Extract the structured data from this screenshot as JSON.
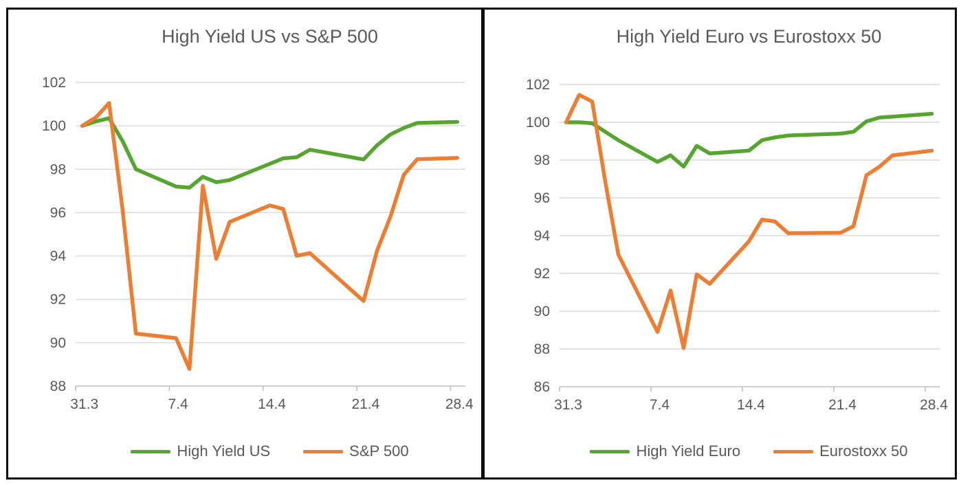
{
  "style": {
    "green": "#56A52E",
    "orange": "#ED7D31",
    "grid_color": "#d9d9d9",
    "axis_color": "#bfbfbf",
    "text_color": "#595959"
  },
  "chart_data": [
    {
      "type": "line",
      "title": "High Yield US vs S&P 500",
      "xlabel": "",
      "ylabel": "",
      "ylim": [
        88,
        102
      ],
      "y_tick_labels": [
        "102",
        "100",
        "98",
        "96",
        "94",
        "92",
        "90",
        "88"
      ],
      "x_tick_labels": [
        "31.3",
        "7.4",
        "14.4",
        "21.4",
        "28.4"
      ],
      "x_tick_day_indices": [
        0,
        7,
        14,
        21,
        28
      ],
      "num_days": 29,
      "grid": "horizontal",
      "legend_position": "bottom",
      "series": [
        {
          "name": "High Yield US",
          "color": "#56A52E",
          "points": [
            [
              0,
              100.0
            ],
            [
              1,
              100.2
            ],
            [
              2,
              100.35
            ],
            [
              3,
              99.3
            ],
            [
              4,
              98.0
            ],
            [
              7,
              97.2
            ],
            [
              8,
              97.15
            ],
            [
              9,
              97.65
            ],
            [
              10,
              97.4
            ],
            [
              11,
              97.5
            ],
            [
              14,
              98.25
            ],
            [
              15,
              98.5
            ],
            [
              16,
              98.55
            ],
            [
              17,
              98.9
            ],
            [
              21,
              98.45
            ],
            [
              22,
              99.1
            ],
            [
              23,
              99.6
            ],
            [
              24,
              99.9
            ],
            [
              25,
              100.13
            ],
            [
              28,
              100.18
            ]
          ]
        },
        {
          "name": "S&P 500",
          "color": "#ED7D31",
          "points": [
            [
              0,
              100.0
            ],
            [
              1,
              100.38
            ],
            [
              2,
              101.05
            ],
            [
              3,
              96.16
            ],
            [
              4,
              90.42
            ],
            [
              7,
              90.21
            ],
            [
              8,
              88.79
            ],
            [
              9,
              97.24
            ],
            [
              10,
              93.87
            ],
            [
              11,
              95.57
            ],
            [
              14,
              96.33
            ],
            [
              15,
              96.17
            ],
            [
              16,
              94.01
            ],
            [
              17,
              94.13
            ],
            [
              21,
              91.92
            ],
            [
              22,
              94.23
            ],
            [
              23,
              95.8
            ],
            [
              24,
              97.74
            ],
            [
              25,
              98.46
            ],
            [
              28,
              98.52
            ]
          ]
        }
      ],
      "legend": [
        "High Yield US",
        "S&P 500"
      ]
    },
    {
      "type": "line",
      "title": "High Yield Euro vs Eurostoxx 50",
      "xlabel": "",
      "ylabel": "",
      "ylim": [
        86,
        102
      ],
      "y_tick_labels": [
        "102",
        "100",
        "98",
        "96",
        "94",
        "92",
        "90",
        "88",
        "86"
      ],
      "x_tick_labels": [
        "31.3",
        "7.4",
        "14.4",
        "21.4",
        "28.4"
      ],
      "x_tick_day_indices": [
        0,
        7,
        14,
        21,
        28
      ],
      "num_days": 29,
      "grid": "horizontal",
      "legend_position": "bottom",
      "series": [
        {
          "name": "High Yield Euro",
          "color": "#56A52E",
          "points": [
            [
              0,
              100.0
            ],
            [
              1,
              100.0
            ],
            [
              2,
              99.95
            ],
            [
              3,
              99.5
            ],
            [
              4,
              99.05
            ],
            [
              7,
              97.9
            ],
            [
              8,
              98.25
            ],
            [
              9,
              97.65
            ],
            [
              10,
              98.75
            ],
            [
              11,
              98.35
            ],
            [
              14,
              98.5
            ],
            [
              15,
              99.05
            ],
            [
              16,
              99.2
            ],
            [
              17,
              99.3
            ],
            [
              21,
              99.4
            ],
            [
              22,
              99.5
            ],
            [
              23,
              100.05
            ],
            [
              24,
              100.25
            ],
            [
              25,
              100.3
            ],
            [
              28,
              100.45
            ]
          ]
        },
        {
          "name": "Eurostoxx 50",
          "color": "#ED7D31",
          "points": [
            [
              0,
              100.0
            ],
            [
              1,
              101.45
            ],
            [
              2,
              101.1
            ],
            [
              3,
              96.85
            ],
            [
              4,
              93.0
            ],
            [
              7,
              88.9
            ],
            [
              8,
              91.1
            ],
            [
              9,
              88.05
            ],
            [
              10,
              91.95
            ],
            [
              11,
              91.45
            ],
            [
              14,
              93.7
            ],
            [
              15,
              94.85
            ],
            [
              16,
              94.75
            ],
            [
              17,
              94.13
            ],
            [
              21,
              94.15
            ],
            [
              22,
              94.5
            ],
            [
              23,
              97.2
            ],
            [
              24,
              97.65
            ],
            [
              25,
              98.25
            ],
            [
              28,
              98.5
            ]
          ]
        }
      ],
      "legend": [
        "High Yield Euro",
        "Eurostoxx 50"
      ]
    }
  ]
}
